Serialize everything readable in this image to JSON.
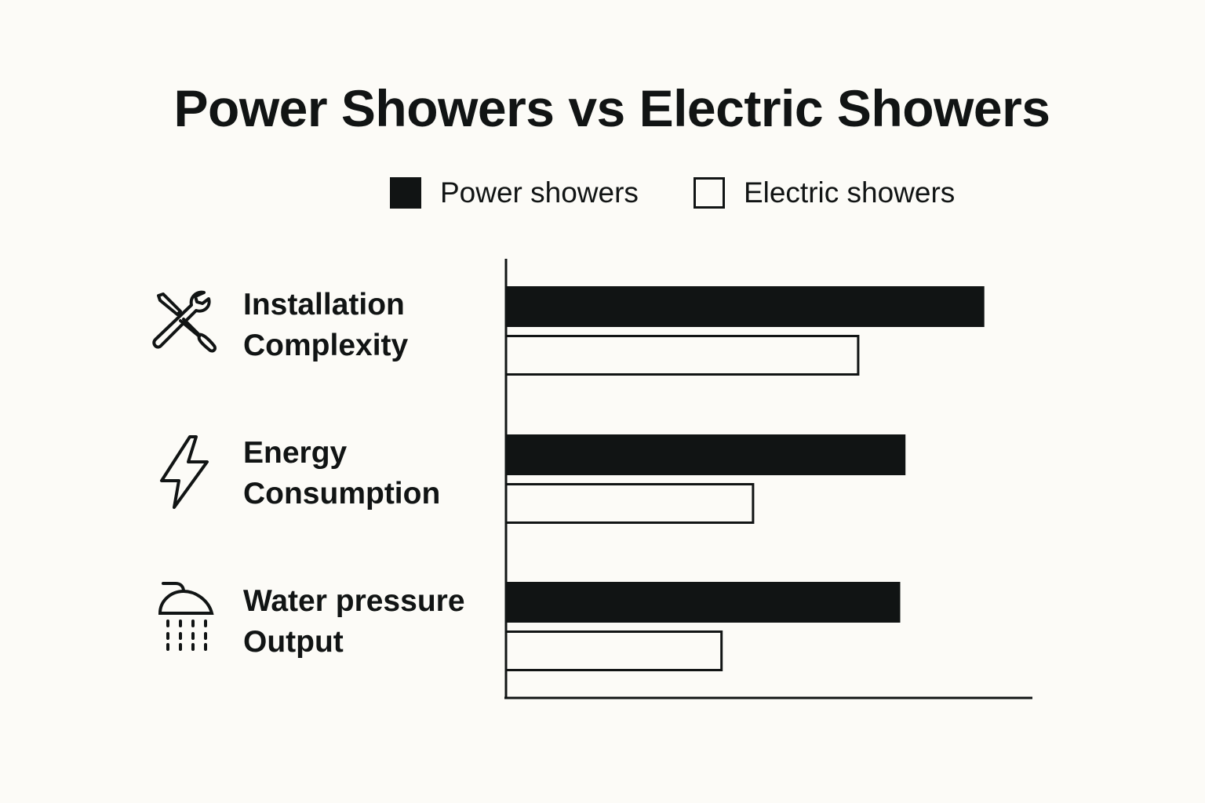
{
  "title": "Power Showers vs Electric Showers",
  "legend": [
    {
      "label": "Power showers",
      "color": "#111414",
      "style": "filled"
    },
    {
      "label": "Electric showers",
      "color": "#fcfbf7",
      "style": "outlined"
    }
  ],
  "categories": [
    {
      "line1": "Installation",
      "line2": "Complexity",
      "icon": "wrench-screwdriver-icon"
    },
    {
      "line1": "Energy",
      "line2": "Consumption",
      "icon": "lightning-bolt-icon"
    },
    {
      "line1": "Water pressure",
      "line2": "Output",
      "icon": "shower-head-icon"
    }
  ],
  "chart_data": {
    "type": "bar",
    "orientation": "horizontal",
    "title": "Power Showers vs Electric Showers",
    "categories": [
      "Installation Complexity",
      "Energy Consumption",
      "Water pressure Output"
    ],
    "series": [
      {
        "name": "Power showers",
        "values": [
          91,
          76,
          75
        ]
      },
      {
        "name": "Electric showers",
        "values": [
          67,
          47,
          41
        ]
      }
    ],
    "xlim": [
      0,
      100
    ],
    "axis_ticks": false,
    "grid": false,
    "legend_position": "top"
  }
}
